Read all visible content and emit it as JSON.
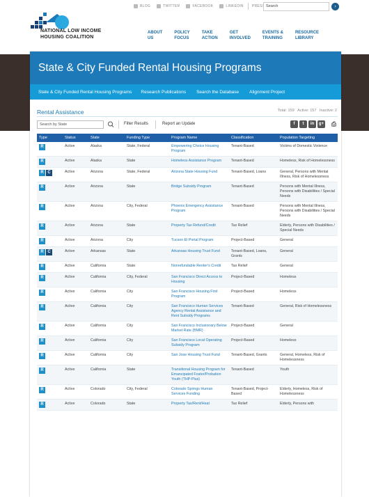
{
  "topbar": {
    "links": [
      {
        "label": "BLOG",
        "icon": "blog-icon"
      },
      {
        "label": "TWITTER",
        "icon": "twitter-icon"
      },
      {
        "label": "FACEBOOK",
        "icon": "facebook-icon"
      },
      {
        "label": "LINKEDIN",
        "icon": "linkedin-icon"
      }
    ],
    "press": "PRESS",
    "search_value": "Search"
  },
  "logo": {
    "line1": "NATIONAL LOW INCOME",
    "line2": "HOUSING COALITION"
  },
  "nav": [
    {
      "line1": "ABOUT",
      "line2": "US"
    },
    {
      "line1": "POLICY",
      "line2": "FOCUS"
    },
    {
      "line1": "TAKE",
      "line2": "ACTION"
    },
    {
      "line1": "GET",
      "line2": "INVOLVED"
    },
    {
      "line1": "EVENTS &",
      "line2": "TRAINING"
    },
    {
      "line1": "RESOURCE",
      "line2": "LIBRARY"
    }
  ],
  "page": {
    "title": "State & City Funded Rental Housing Programs",
    "subnav": [
      "State & City Funded Rental Housing Programs",
      "Research Publications",
      "Search the Database",
      "Alignment Project"
    ],
    "section_title": "Rental Assistance",
    "stats": {
      "total": "Total: 159",
      "active": "Active: 157",
      "inactive": "Inactive: 2"
    },
    "state_search_placeholder": "Search by State",
    "filter_results": "Filter Results",
    "report_update": "Report an Update",
    "share_icons": [
      "f",
      "t",
      "in",
      "g+"
    ]
  },
  "colors": {
    "brand_blue": "#1e79b8",
    "subnav_blue": "#169bd9",
    "header_dark": "#3b2f2c",
    "table_head": "#1e5fa8"
  },
  "table": {
    "headers": [
      "Type",
      "Status",
      "State",
      "Funding Type",
      "Program Name",
      "Classification",
      "Population Targeting"
    ],
    "rows": [
      {
        "type": [
          "R"
        ],
        "status": "Active",
        "state": "Alaska",
        "funding": "State, Federal",
        "program": "Empowering Choice Housing Program",
        "classification": "Tenant-Based",
        "population": "Victims of Domestic Violence"
      },
      {
        "type": [
          "R"
        ],
        "status": "Active",
        "state": "Alaska",
        "funding": "State",
        "program": "Homeless Assistance Program",
        "classification": "Tenant-Based",
        "population": "Homeless, Risk of Homelessness"
      },
      {
        "type": [
          "R",
          "C"
        ],
        "status": "Active",
        "state": "Arizona",
        "funding": "State, Federal",
        "program": "Arizona State Housing Fund",
        "classification": "Tenant-Based, Loans",
        "population": "General, Persons with Mental Illness, Risk of Homelessness"
      },
      {
        "type": [
          "R"
        ],
        "status": "Active",
        "state": "Arizona",
        "funding": "State",
        "program": "Bridge Subsidy Program",
        "classification": "Tenant-Based",
        "population": "Persons with Mental Illness, Persons with Disabilities / Special Needs"
      },
      {
        "type": [
          "R"
        ],
        "status": "Active",
        "state": "Arizona",
        "funding": "City, Federal",
        "program": "Phoenix Emergency Assistance Program",
        "classification": "Tenant-Based",
        "population": "Persons with Mental Illness, Persons with Disabilities / Special Needs"
      },
      {
        "type": [
          "R"
        ],
        "status": "Active",
        "state": "Arizona",
        "funding": "State",
        "program": "Property Tax Refund/Credit",
        "classification": "Tax Relief",
        "population": "Elderly, Persons with Disabilities / Special Needs"
      },
      {
        "type": [
          "R"
        ],
        "status": "Active",
        "state": "Arizona",
        "funding": "City",
        "program": "Tucson El Portal Program",
        "classification": "Project-Based",
        "population": "General"
      },
      {
        "type": [
          "R",
          "C"
        ],
        "status": "Active",
        "state": "Arkansas",
        "funding": "State",
        "program": "Arkansas Housing Trust Fund",
        "classification": "Tenant-Based, Loans, Grants",
        "population": "General"
      },
      {
        "type": [
          "R"
        ],
        "status": "Active",
        "state": "California",
        "funding": "State",
        "program": "Nonrefundable Renter's Credit",
        "classification": "Tax Relief",
        "population": "General"
      },
      {
        "type": [
          "R"
        ],
        "status": "Active",
        "state": "California",
        "funding": "City, Federal",
        "program": "San Francisco Direct Access to Housing",
        "classification": "Project-Based",
        "population": "Homeless"
      },
      {
        "type": [
          "R"
        ],
        "status": "Active",
        "state": "California",
        "funding": "City",
        "program": "San Francisco Housing First Program",
        "classification": "Project-Based",
        "population": "Homeless"
      },
      {
        "type": [
          "R"
        ],
        "status": "Active",
        "state": "California",
        "funding": "City",
        "program": "San Francisco Human Services Agency Rental Assistance and Rent Subsidy Programs",
        "classification": "Tenant-Based",
        "population": "General, Risk of Homelessness"
      },
      {
        "type": [
          "R"
        ],
        "status": "Active",
        "state": "California",
        "funding": "City",
        "program": "San Francisco Inclusionary Below Market Rate (BMR)",
        "classification": "Project-Based",
        "population": "General"
      },
      {
        "type": [
          "R"
        ],
        "status": "Active",
        "state": "California",
        "funding": "City",
        "program": "San Francisco Local Operating Subsidy Program",
        "classification": "Project-Based",
        "population": "Homeless"
      },
      {
        "type": [
          "R"
        ],
        "status": "Active",
        "state": "California",
        "funding": "City",
        "program": "San Jose Housing Trust Fund",
        "classification": "Tenant-Based, Grants",
        "population": "General, Homeless, Risk of Homelessness"
      },
      {
        "type": [
          "R"
        ],
        "status": "Active",
        "state": "California",
        "funding": "State",
        "program": "Transitional Housing Program for Emancipated Foster/Probation Youth (THP-Plus)",
        "classification": "Tenant-Based",
        "population": "Youth"
      },
      {
        "type": [
          "R"
        ],
        "status": "Active",
        "state": "Colorado",
        "funding": "City, Federal",
        "program": "Colorado Springs Human Services Funding",
        "classification": "Tenant-Based, Project-Based",
        "population": "Elderly, Homeless, Risk of Homelessness"
      },
      {
        "type": [
          "R"
        ],
        "status": "Active",
        "state": "Colorado",
        "funding": "State",
        "program": "Property Tax/Rent/Heat",
        "classification": "Tax Relief",
        "population": "Elderly, Persons with"
      }
    ]
  }
}
